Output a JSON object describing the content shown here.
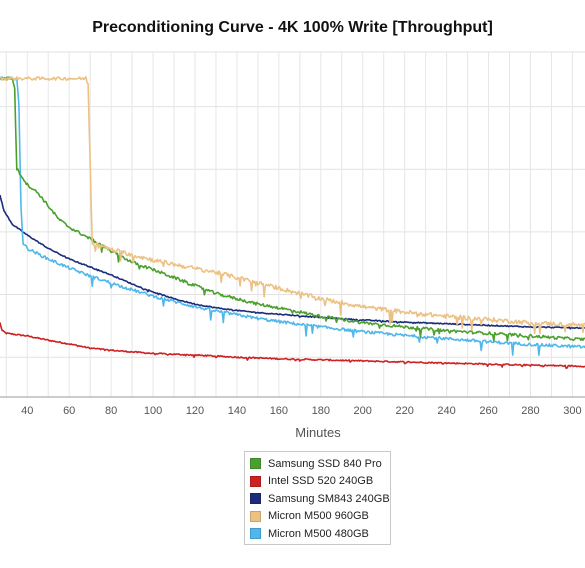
{
  "chart_data": {
    "type": "line",
    "title": "Preconditioning Curve - 4K 100% Write [Throughput]",
    "xlabel": "Minutes",
    "ylabel": "",
    "xlim": [
      27,
      306
    ],
    "ylim": [
      27,
      92
    ],
    "xticks": [
      40,
      60,
      80,
      100,
      120,
      140,
      160,
      180,
      200,
      220,
      240,
      260,
      280,
      300
    ],
    "grid": true,
    "legend_position": "bottom-center",
    "series": [
      {
        "name": "Samsung SSD 840 Pro",
        "color": "#4aa02c",
        "points": [
          [
            27,
            87
          ],
          [
            33,
            87
          ],
          [
            34,
            85
          ],
          [
            35,
            70
          ],
          [
            40,
            67
          ],
          [
            45,
            65.5
          ],
          [
            50,
            63
          ],
          [
            55,
            60.5
          ],
          [
            60,
            59
          ],
          [
            70,
            56.8
          ],
          [
            80,
            54.5
          ],
          [
            90,
            52.4
          ],
          [
            100,
            51
          ],
          [
            110,
            49.5
          ],
          [
            120,
            48
          ],
          [
            130,
            46.5
          ],
          [
            140,
            45.5
          ],
          [
            150,
            44.5
          ],
          [
            160,
            43.8
          ],
          [
            170,
            43
          ],
          [
            180,
            42.2
          ],
          [
            200,
            41
          ],
          [
            220,
            40.2
          ],
          [
            240,
            39.5
          ],
          [
            260,
            39
          ],
          [
            280,
            38.5
          ],
          [
            306,
            37.8
          ]
        ]
      },
      {
        "name": "Intel SSD 520 240GB",
        "color": "#cc2222",
        "points": [
          [
            27,
            41
          ],
          [
            28,
            39.5
          ],
          [
            30,
            39
          ],
          [
            40,
            38.5
          ],
          [
            50,
            37.7
          ],
          [
            60,
            37
          ],
          [
            70,
            36.2
          ],
          [
            80,
            35.8
          ],
          [
            100,
            35.2
          ],
          [
            120,
            34.9
          ],
          [
            140,
            34.5
          ],
          [
            160,
            34.2
          ],
          [
            180,
            34
          ],
          [
            200,
            33.8
          ],
          [
            220,
            33.6
          ],
          [
            240,
            33.4
          ],
          [
            260,
            33.2
          ],
          [
            280,
            33
          ],
          [
            306,
            32.8
          ]
        ]
      },
      {
        "name": "Samsung SM843 240GB",
        "color": "#1c2c7c",
        "points": [
          [
            27,
            65
          ],
          [
            29,
            62
          ],
          [
            33,
            59.5
          ],
          [
            40,
            57.5
          ],
          [
            50,
            55
          ],
          [
            60,
            53
          ],
          [
            70,
            51.5
          ],
          [
            80,
            50
          ],
          [
            90,
            48.3
          ],
          [
            100,
            46.8
          ],
          [
            110,
            45.5
          ],
          [
            120,
            44.5
          ],
          [
            130,
            43.8
          ],
          [
            140,
            43.3
          ],
          [
            150,
            42.9
          ],
          [
            160,
            42.6
          ],
          [
            170,
            42.3
          ],
          [
            180,
            42
          ],
          [
            200,
            41.5
          ],
          [
            220,
            41.1
          ],
          [
            240,
            40.8
          ],
          [
            260,
            40.5
          ],
          [
            280,
            40.2
          ],
          [
            306,
            40
          ]
        ]
      },
      {
        "name": "Micron M500 960GB",
        "color": "#ebc184",
        "points": [
          [
            27,
            87
          ],
          [
            68,
            87
          ],
          [
            69,
            86
          ],
          [
            71,
            56
          ],
          [
            80,
            54.8
          ],
          [
            90,
            53.8
          ],
          [
            100,
            52.8
          ],
          [
            110,
            52
          ],
          [
            120,
            51.2
          ],
          [
            130,
            50.5
          ],
          [
            140,
            49.5
          ],
          [
            150,
            48.5
          ],
          [
            160,
            47.5
          ],
          [
            170,
            46.5
          ],
          [
            180,
            45.5
          ],
          [
            190,
            44.8
          ],
          [
            200,
            44
          ],
          [
            220,
            43
          ],
          [
            240,
            42.2
          ],
          [
            260,
            41.6
          ],
          [
            280,
            41
          ],
          [
            306,
            40.5
          ]
        ]
      },
      {
        "name": "Micron M500 480GB",
        "color": "#4fb7ea",
        "points": [
          [
            27,
            87
          ],
          [
            35,
            87
          ],
          [
            36,
            82
          ],
          [
            37,
            63
          ],
          [
            38,
            56
          ],
          [
            40,
            55
          ],
          [
            50,
            53
          ],
          [
            60,
            51.3
          ],
          [
            70,
            49.8
          ],
          [
            80,
            48.5
          ],
          [
            90,
            47.2
          ],
          [
            100,
            46
          ],
          [
            110,
            45
          ],
          [
            120,
            44
          ],
          [
            130,
            43.2
          ],
          [
            140,
            42.5
          ],
          [
            150,
            41.8
          ],
          [
            160,
            41.2
          ],
          [
            170,
            40.7
          ],
          [
            180,
            40.2
          ],
          [
            200,
            39.3
          ],
          [
            220,
            38.6
          ],
          [
            240,
            38
          ],
          [
            260,
            37.4
          ],
          [
            280,
            36.9
          ],
          [
            306,
            36.4
          ]
        ]
      }
    ]
  }
}
